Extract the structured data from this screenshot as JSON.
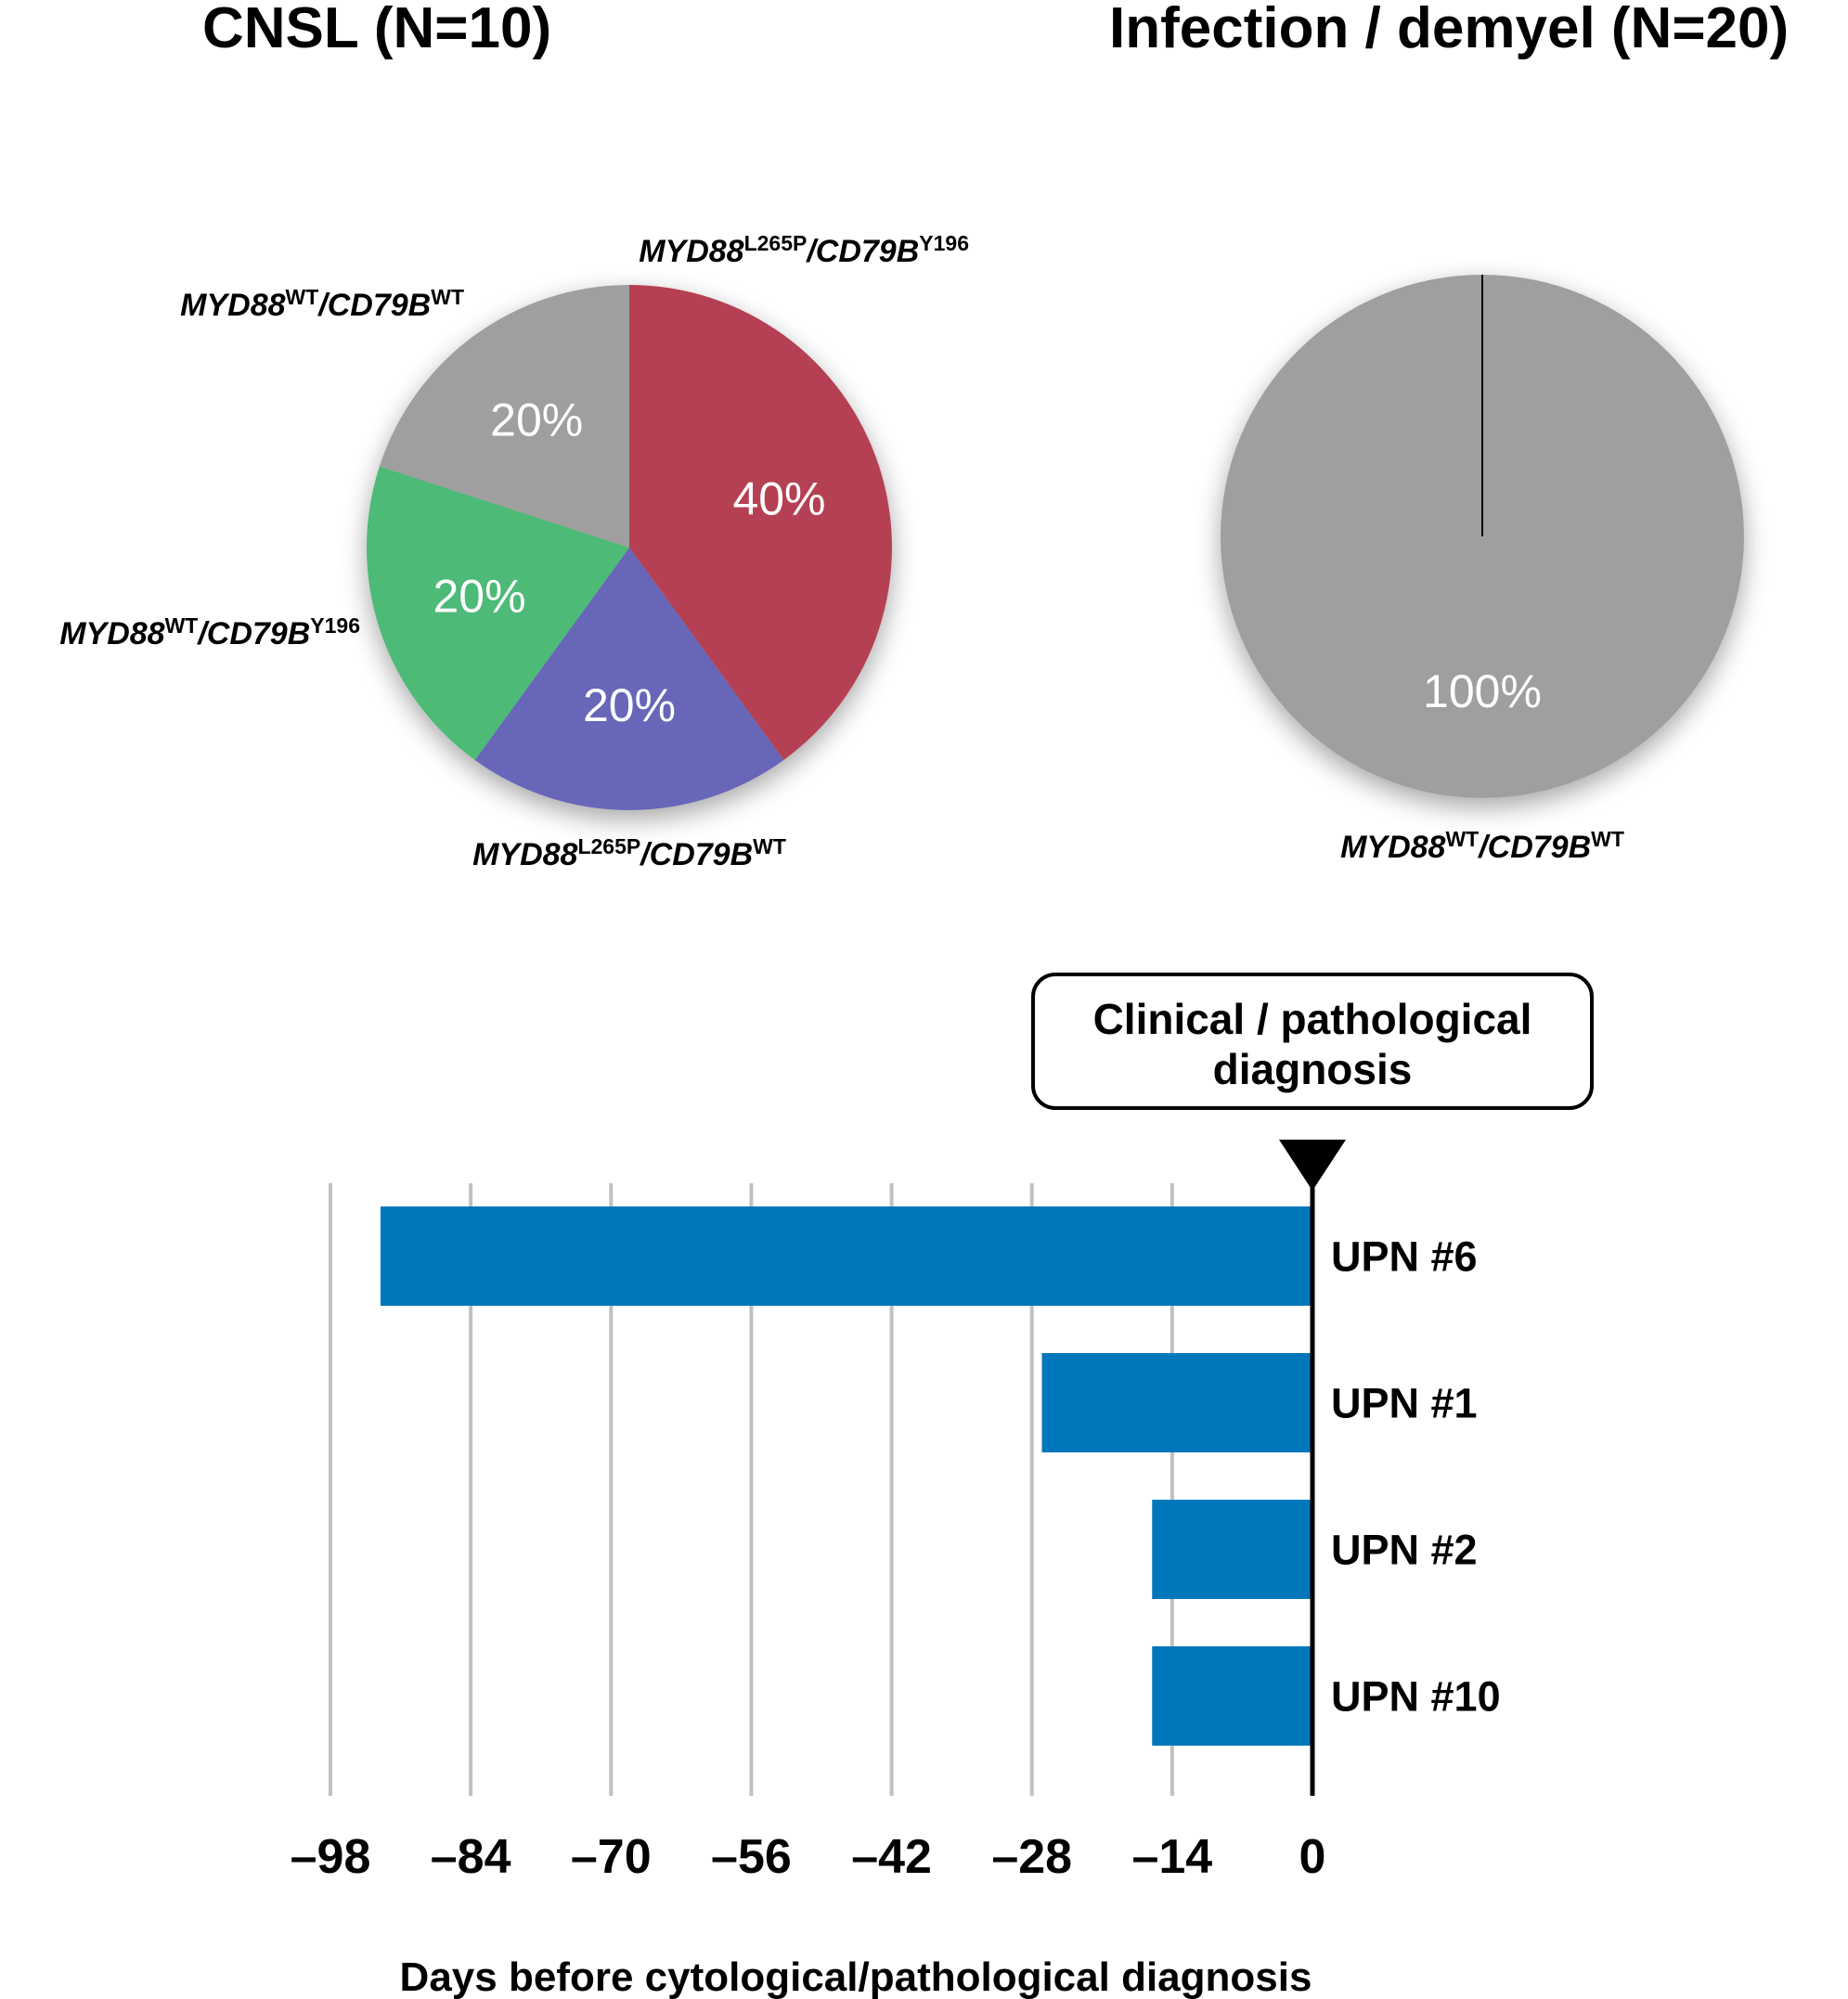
{
  "titles": {
    "left": "CNSL (N=10)",
    "right": "Infection / demyel (N=20)"
  },
  "chart_data": [
    {
      "type": "pie",
      "title": "CNSL (N=10)",
      "slices": [
        {
          "gene1": "MYD88",
          "sup1": "L265P",
          "gene2": "/CD79B",
          "sup2": "Y196",
          "value": 40,
          "label": "40%",
          "color": "#b54153"
        },
        {
          "gene1": "MYD88",
          "sup1": "L265P",
          "gene2": "/CD79B",
          "sup2": "WT",
          "value": 20,
          "label": "20%",
          "color": "#6866b8"
        },
        {
          "gene1": "MYD88",
          "sup1": "WT",
          "gene2": "/CD79B",
          "sup2": "Y196",
          "value": 20,
          "label": "20%",
          "color": "#4eba77"
        },
        {
          "gene1": "MYD88",
          "sup1": "WT",
          "gene2": "/CD79B",
          "sup2": "WT",
          "value": 20,
          "label": "20%",
          "color": "#9f9f9f"
        }
      ]
    },
    {
      "type": "pie",
      "title": "Infection / demyel (N=20)",
      "slices": [
        {
          "gene1": "MYD88",
          "sup1": "WT",
          "gene2": "/CD79B",
          "sup2": "WT",
          "value": 100,
          "label": "100%",
          "color": "#9f9f9f"
        }
      ]
    },
    {
      "type": "bar",
      "orientation": "horizontal",
      "categories": [
        "UPN #6",
        "UPN #1",
        "UPN #2",
        "UPN #10"
      ],
      "values": [
        -93,
        -27,
        -16,
        -16
      ],
      "xlim": [
        -98,
        0
      ],
      "xticks": [
        -98,
        -84,
        -70,
        -56,
        -42,
        -28,
        -14,
        0
      ],
      "xtick_labels": [
        "–98",
        "–84",
        "–70",
        "–56",
        "–42",
        "–28",
        "–14",
        "0"
      ],
      "xlabel": "Days before cytological/pathological diagnosis",
      "grid": true,
      "bar_color": "#0077bb",
      "annotation": {
        "line1": "Clinical / pathological",
        "line2": "diagnosis"
      }
    }
  ]
}
